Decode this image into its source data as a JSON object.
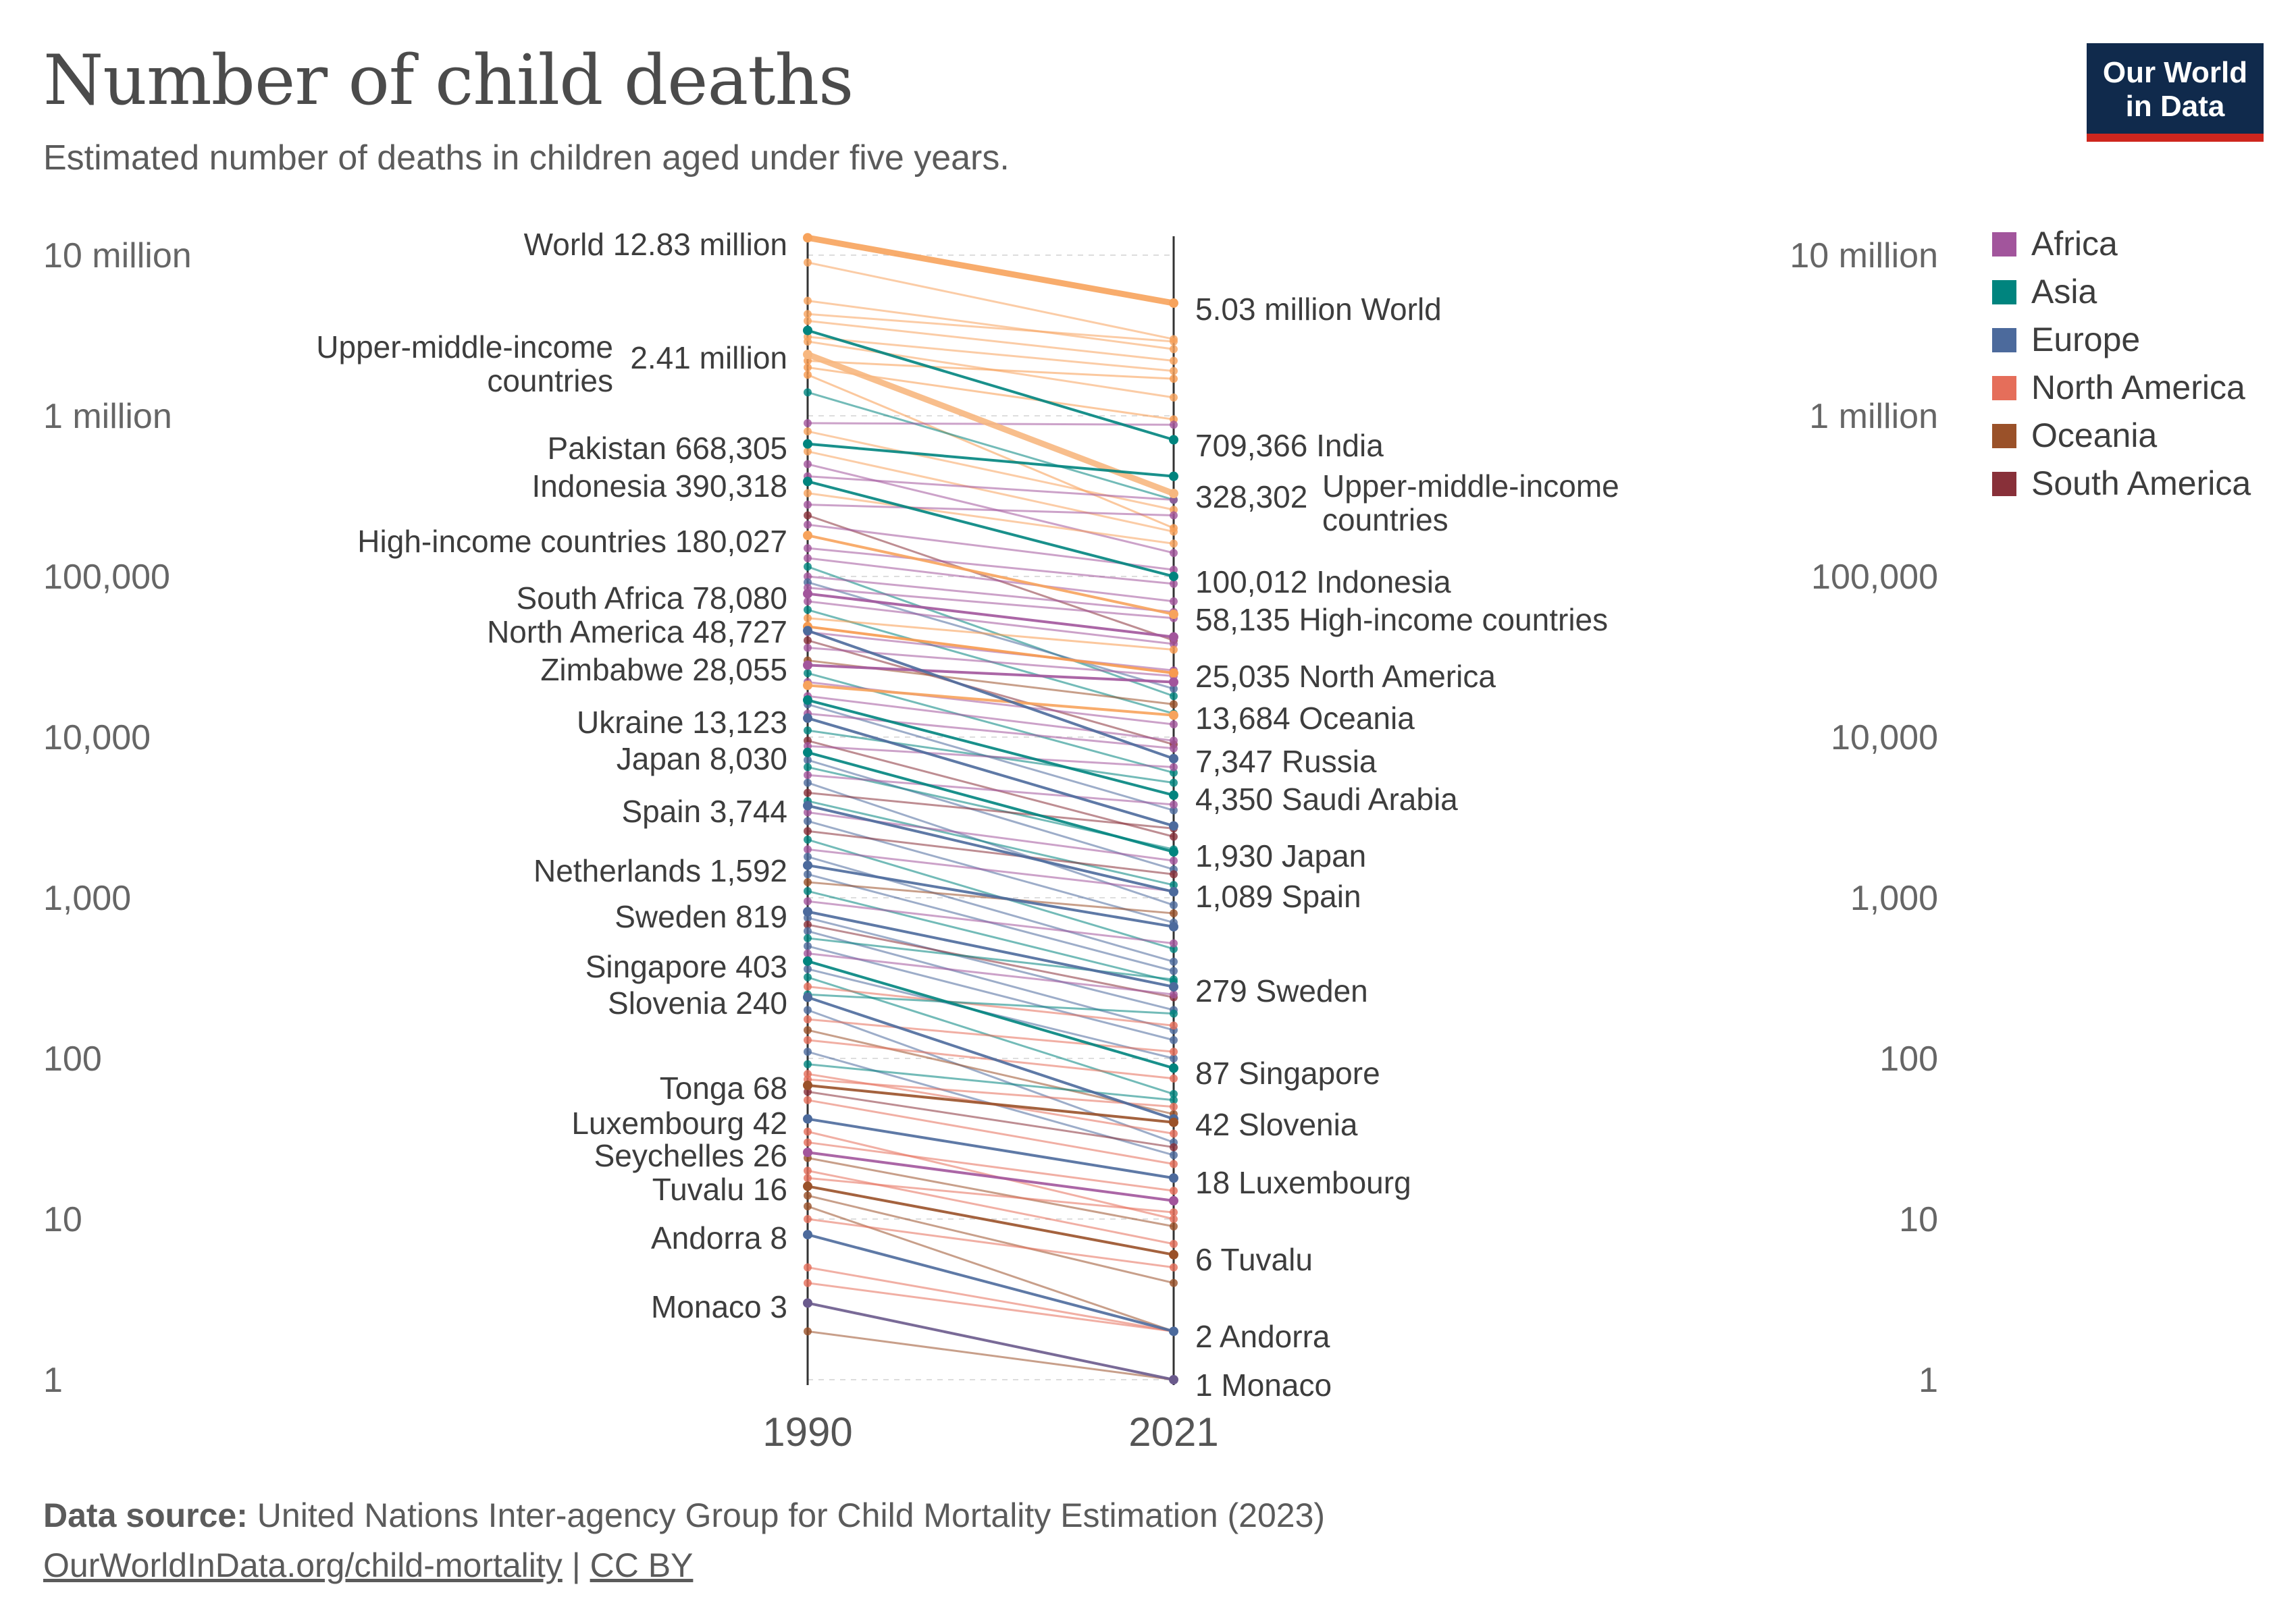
{
  "header": {
    "title": "Number of child deaths",
    "subtitle": "Estimated number of deaths in children aged under five years.",
    "logo_line1": "Our World",
    "logo_line2": "in Data"
  },
  "legend": [
    {
      "label": "Africa",
      "color": "#a2559c"
    },
    {
      "label": "Asia",
      "color": "#00847e"
    },
    {
      "label": "Europe",
      "color": "#4c6a9c"
    },
    {
      "label": "North America",
      "color": "#e56e5a"
    },
    {
      "label": "Oceania",
      "color": "#9a5129"
    },
    {
      "label": "South America",
      "color": "#883039"
    }
  ],
  "footer": {
    "source_label": "Data source:",
    "source_text": "United Nations Inter-agency Group for Child Mortality Estimation (2023)",
    "link_text": "OurWorldInData.org/child-mortality",
    "separator": "|",
    "license": "CC BY"
  },
  "chart_data": {
    "type": "slope",
    "scale": "log",
    "x": [
      "1990",
      "2021"
    ],
    "ylim": [
      1,
      14000000
    ],
    "y_ticks": [
      {
        "value": 1,
        "label": "1"
      },
      {
        "value": 10,
        "label": "10"
      },
      {
        "value": 100,
        "label": "100"
      },
      {
        "value": 1000,
        "label": "1,000"
      },
      {
        "value": 10000,
        "label": "10,000"
      },
      {
        "value": 100000,
        "label": "100,000"
      },
      {
        "value": 1000000,
        "label": "1 million"
      },
      {
        "value": 10000000,
        "label": "10 million"
      }
    ],
    "grid": true,
    "legend_position": "top-right",
    "labeled_series": [
      {
        "name": "World",
        "v1990": 12830000,
        "v2021": 5030000,
        "left_value_label": "12.83 million",
        "right_value_label": "5.03 million",
        "color": "#f7a35c",
        "width": 9,
        "left_label": true,
        "right_label": true
      },
      {
        "name": "Upper-middle-income countries",
        "v1990": 2410000,
        "v2021": 328302,
        "left_value_label": "2.41 million",
        "right_value_label": "328,302",
        "color": "#f7b77f",
        "width": 9,
        "left_label": true,
        "right_label": true
      },
      {
        "name": "Pakistan",
        "v1990": 668305,
        "v2021": 420000,
        "left_value_label": "668,305",
        "color": "#00847e",
        "left_label": true,
        "right_label": false
      },
      {
        "name": "Indonesia",
        "v1990": 390318,
        "v2021": 100012,
        "left_value_label": "390,318",
        "right_value_label": "100,012",
        "color": "#00847e",
        "left_label": true,
        "right_label": true
      },
      {
        "name": "High-income countries",
        "v1990": 180027,
        "v2021": 58135,
        "left_value_label": "180,027",
        "right_value_label": "58,135",
        "color": "#f7a35c",
        "left_label": true,
        "right_label": true
      },
      {
        "name": "South Africa",
        "v1990": 78080,
        "v2021": 42000,
        "left_value_label": "78,080",
        "color": "#a2559c",
        "left_label": true,
        "right_label": false
      },
      {
        "name": "North America",
        "v1990": 48727,
        "v2021": 25035,
        "left_value_label": "48,727",
        "right_value_label": "25,035",
        "color": "#f79a4f",
        "left_label": true,
        "right_label": true
      },
      {
        "name": "Zimbabwe",
        "v1990": 28055,
        "v2021": 22000,
        "left_value_label": "28,055",
        "color": "#a2559c",
        "left_label": true,
        "right_label": false
      },
      {
        "name": "Ukraine",
        "v1990": 13123,
        "v2021": 2800,
        "left_value_label": "13,123",
        "color": "#4c6a9c",
        "left_label": true,
        "right_label": false
      },
      {
        "name": "Japan",
        "v1990": 8030,
        "v2021": 1930,
        "left_value_label": "8,030",
        "right_value_label": "1,930",
        "color": "#00847e",
        "left_label": true,
        "right_label": true
      },
      {
        "name": "Spain",
        "v1990": 3744,
        "v2021": 1089,
        "left_value_label": "3,744",
        "right_value_label": "1,089",
        "color": "#4c6a9c",
        "left_label": true,
        "right_label": true
      },
      {
        "name": "Netherlands",
        "v1990": 1592,
        "v2021": 660,
        "left_value_label": "1,592",
        "color": "#4c6a9c",
        "left_label": true,
        "right_label": false
      },
      {
        "name": "Sweden",
        "v1990": 819,
        "v2021": 279,
        "left_value_label": "819",
        "right_value_label": "279",
        "color": "#4c6a9c",
        "left_label": true,
        "right_label": true
      },
      {
        "name": "Singapore",
        "v1990": 403,
        "v2021": 87,
        "left_value_label": "403",
        "right_value_label": "87",
        "color": "#00847e",
        "left_label": true,
        "right_label": true
      },
      {
        "name": "Slovenia",
        "v1990": 240,
        "v2021": 42,
        "left_value_label": "240",
        "right_value_label": "42",
        "color": "#4c6a9c",
        "left_label": true,
        "right_label": true
      },
      {
        "name": "Tonga",
        "v1990": 68,
        "v2021": 40,
        "left_value_label": "68",
        "color": "#9a5129",
        "left_label": true,
        "right_label": false
      },
      {
        "name": "Luxembourg",
        "v1990": 42,
        "v2021": 18,
        "left_value_label": "42",
        "right_value_label": "18",
        "color": "#4c6a9c",
        "left_label": true,
        "right_label": true
      },
      {
        "name": "Seychelles",
        "v1990": 26,
        "v2021": 13,
        "left_value_label": "26",
        "color": "#a2559c",
        "left_label": true,
        "right_label": false
      },
      {
        "name": "Tuvalu",
        "v1990": 16,
        "v2021": 6,
        "left_value_label": "16",
        "right_value_label": "6",
        "color": "#9a5129",
        "left_label": true,
        "right_label": true
      },
      {
        "name": "Andorra",
        "v1990": 8,
        "v2021": 2,
        "left_value_label": "8",
        "right_value_label": "2",
        "color": "#4c6a9c",
        "left_label": true,
        "right_label": true
      },
      {
        "name": "Monaco",
        "v1990": 3,
        "v2021": 1,
        "left_value_label": "3",
        "right_value_label": "1",
        "color": "#6a5a8c",
        "left_label": true,
        "right_label": true
      },
      {
        "name": "India",
        "v1990": 3400000,
        "v2021": 709366,
        "right_value_label": "709,366",
        "color": "#00847e",
        "left_label": false,
        "right_label": true
      },
      {
        "name": "Oceania",
        "v1990": 21000,
        "v2021": 13684,
        "right_value_label": "13,684",
        "color": "#f7a35c",
        "left_label": false,
        "right_label": true
      },
      {
        "name": "Russia",
        "v1990": 46000,
        "v2021": 7347,
        "right_value_label": "7,347",
        "color": "#4c6a9c",
        "left_label": false,
        "right_label": true
      },
      {
        "name": "Saudi Arabia",
        "v1990": 17000,
        "v2021": 4350,
        "right_value_label": "4,350",
        "color": "#00847e",
        "left_label": false,
        "right_label": true
      }
    ],
    "background_series": [
      {
        "v1990": 9000000,
        "v2021": 3000000,
        "color": "#f7a35c"
      },
      {
        "v1990": 5200000,
        "v2021": 2600000,
        "color": "#f7a35c"
      },
      {
        "v1990": 4300000,
        "v2021": 2900000,
        "color": "#f7a35c"
      },
      {
        "v1990": 3900000,
        "v2021": 2200000,
        "color": "#f7a35c"
      },
      {
        "v1990": 3100000,
        "v2021": 1900000,
        "color": "#f7a35c"
      },
      {
        "v1990": 2900000,
        "v2021": 1300000,
        "color": "#f7a35c"
      },
      {
        "v1990": 2200000,
        "v2021": 1700000,
        "color": "#f79a4f"
      },
      {
        "v1990": 2000000,
        "v2021": 950000,
        "color": "#f79a4f"
      },
      {
        "v1990": 1800000,
        "v2021": 200000,
        "color": "#f79a4f"
      },
      {
        "v1990": 1400000,
        "v2021": 300000,
        "color": "#00847e"
      },
      {
        "v1990": 900000,
        "v2021": 880000,
        "color": "#a2559c"
      },
      {
        "v1990": 800000,
        "v2021": 260000,
        "color": "#f7a35c"
      },
      {
        "v1990": 600000,
        "v2021": 190000,
        "color": "#f7a35c"
      },
      {
        "v1990": 500000,
        "v2021": 140000,
        "color": "#a2559c"
      },
      {
        "v1990": 420000,
        "v2021": 300000,
        "color": "#a2559c"
      },
      {
        "v1990": 330000,
        "v2021": 160000,
        "color": "#f7a35c"
      },
      {
        "v1990": 280000,
        "v2021": 240000,
        "color": "#a2559c"
      },
      {
        "v1990": 240000,
        "v2021": 40000,
        "color": "#883039"
      },
      {
        "v1990": 210000,
        "v2021": 110000,
        "color": "#a2559c"
      },
      {
        "v1990": 150000,
        "v2021": 90000,
        "color": "#a2559c"
      },
      {
        "v1990": 130000,
        "v2021": 70000,
        "color": "#a2559c"
      },
      {
        "v1990": 115000,
        "v2021": 18000,
        "color": "#00847e"
      },
      {
        "v1990": 100000,
        "v2021": 60000,
        "color": "#a2559c"
      },
      {
        "v1990": 92000,
        "v2021": 20000,
        "color": "#4c6a9c"
      },
      {
        "v1990": 85000,
        "v2021": 55000,
        "color": "#a2559c"
      },
      {
        "v1990": 70000,
        "v2021": 38000,
        "color": "#a2559c"
      },
      {
        "v1990": 62000,
        "v2021": 14000,
        "color": "#00847e"
      },
      {
        "v1990": 55000,
        "v2021": 35000,
        "color": "#f79a4f"
      },
      {
        "v1990": 45000,
        "v2021": 26000,
        "color": "#a2559c"
      },
      {
        "v1990": 40000,
        "v2021": 9000,
        "color": "#883039"
      },
      {
        "v1990": 36000,
        "v2021": 24000,
        "color": "#a2559c"
      },
      {
        "v1990": 30000,
        "v2021": 16000,
        "color": "#9a5129"
      },
      {
        "v1990": 25000,
        "v2021": 6000,
        "color": "#00847e"
      },
      {
        "v1990": 22000,
        "v2021": 12000,
        "color": "#a2559c"
      },
      {
        "v1990": 18000,
        "v2021": 9500,
        "color": "#a2559c"
      },
      {
        "v1990": 16000,
        "v2021": 3500,
        "color": "#4c6a9c"
      },
      {
        "v1990": 14000,
        "v2021": 8500,
        "color": "#a2559c"
      },
      {
        "v1990": 11000,
        "v2021": 5200,
        "color": "#00847e"
      },
      {
        "v1990": 9500,
        "v2021": 2400,
        "color": "#883039"
      },
      {
        "v1990": 8800,
        "v2021": 6500,
        "color": "#a2559c"
      },
      {
        "v1990": 7200,
        "v2021": 1500,
        "color": "#4c6a9c"
      },
      {
        "v1990": 6500,
        "v2021": 2000,
        "color": "#00847e"
      },
      {
        "v1990": 5800,
        "v2021": 3800,
        "color": "#a2559c"
      },
      {
        "v1990": 5200,
        "v2021": 900,
        "color": "#4c6a9c"
      },
      {
        "v1990": 4500,
        "v2021": 2700,
        "color": "#883039"
      },
      {
        "v1990": 4000,
        "v2021": 1200,
        "color": "#00847e"
      },
      {
        "v1990": 3400,
        "v2021": 1700,
        "color": "#a2559c"
      },
      {
        "v1990": 3000,
        "v2021": 700,
        "color": "#4c6a9c"
      },
      {
        "v1990": 2600,
        "v2021": 1400,
        "color": "#883039"
      },
      {
        "v1990": 2300,
        "v2021": 480,
        "color": "#00847e"
      },
      {
        "v1990": 2000,
        "v2021": 1100,
        "color": "#a2559c"
      },
      {
        "v1990": 1800,
        "v2021": 400,
        "color": "#4c6a9c"
      },
      {
        "v1990": 1400,
        "v2021": 350,
        "color": "#4c6a9c"
      },
      {
        "v1990": 1250,
        "v2021": 800,
        "color": "#9a5129"
      },
      {
        "v1990": 1100,
        "v2021": 300,
        "color": "#00847e"
      },
      {
        "v1990": 950,
        "v2021": 520,
        "color": "#a2559c"
      },
      {
        "v1990": 750,
        "v2021": 200,
        "color": "#4c6a9c"
      },
      {
        "v1990": 680,
        "v2021": 240,
        "color": "#883039"
      },
      {
        "v1990": 620,
        "v2021": 150,
        "color": "#4c6a9c"
      },
      {
        "v1990": 560,
        "v2021": 310,
        "color": "#00847e"
      },
      {
        "v1990": 500,
        "v2021": 130,
        "color": "#4c6a9c"
      },
      {
        "v1990": 450,
        "v2021": 250,
        "color": "#a2559c"
      },
      {
        "v1990": 360,
        "v2021": 100,
        "color": "#4c6a9c"
      },
      {
        "v1990": 320,
        "v2021": 60,
        "color": "#00847e"
      },
      {
        "v1990": 280,
        "v2021": 160,
        "color": "#e56e5a"
      },
      {
        "v1990": 250,
        "v2021": 190,
        "color": "#00847e"
      },
      {
        "v1990": 200,
        "v2021": 30,
        "color": "#4c6a9c"
      },
      {
        "v1990": 175,
        "v2021": 110,
        "color": "#e56e5a"
      },
      {
        "v1990": 150,
        "v2021": 45,
        "color": "#9a5129"
      },
      {
        "v1990": 130,
        "v2021": 75,
        "color": "#e56e5a"
      },
      {
        "v1990": 110,
        "v2021": 25,
        "color": "#4c6a9c"
      },
      {
        "v1990": 92,
        "v2021": 55,
        "color": "#00847e"
      },
      {
        "v1990": 80,
        "v2021": 34,
        "color": "#e56e5a"
      },
      {
        "v1990": 74,
        "v2021": 50,
        "color": "#e56e5a"
      },
      {
        "v1990": 62,
        "v2021": 28,
        "color": "#883039"
      },
      {
        "v1990": 55,
        "v2021": 22,
        "color": "#e56e5a"
      },
      {
        "v1990": 35,
        "v2021": 10,
        "color": "#e56e5a"
      },
      {
        "v1990": 30,
        "v2021": 15,
        "color": "#e56e5a"
      },
      {
        "v1990": 24,
        "v2021": 9,
        "color": "#9a5129"
      },
      {
        "v1990": 20,
        "v2021": 7,
        "color": "#e56e5a"
      },
      {
        "v1990": 18,
        "v2021": 11,
        "color": "#e56e5a"
      },
      {
        "v1990": 14,
        "v2021": 4,
        "color": "#9a5129"
      },
      {
        "v1990": 12,
        "v2021": 2,
        "color": "#9a5129"
      },
      {
        "v1990": 10,
        "v2021": 5,
        "color": "#e56e5a"
      },
      {
        "v1990": 5,
        "v2021": 2,
        "color": "#e56e5a"
      },
      {
        "v1990": 4,
        "v2021": 2,
        "color": "#e56e5a"
      },
      {
        "v1990": 2,
        "v2021": 1,
        "color": "#9a5129"
      }
    ]
  }
}
